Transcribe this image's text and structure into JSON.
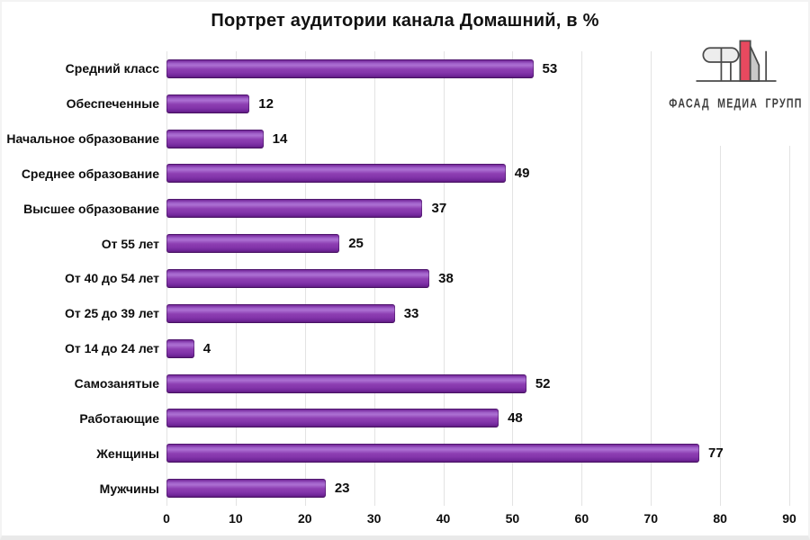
{
  "title": "Портрет аудитории канала Домашний, в %",
  "logo": {
    "text": "ФАСАД МЕДИА ГРУПП",
    "accent_red": "#e8495f",
    "gray_fill": "#c9c9c9",
    "light_fill": "#ededed",
    "outline": "#4a4a4a"
  },
  "chart_data": {
    "type": "bar",
    "orientation": "horizontal",
    "title": "Портрет аудитории канала Домашний, в %",
    "categories": [
      "Средний класс",
      "Обеспеченные",
      "Начальное образование",
      "Среднее образование",
      "Высшее образование",
      "От 55 лет",
      "От 40 до 54 лет",
      "От 25 до 39 лет",
      "От 14 до 24 лет",
      "Самозанятые",
      "Работающие",
      "Женщины",
      "Мужчины"
    ],
    "values": [
      53,
      12,
      14,
      49,
      37,
      25,
      38,
      33,
      4,
      52,
      48,
      77,
      23
    ],
    "xlim": [
      0,
      90
    ],
    "x_ticks": [
      "0",
      "10",
      "20",
      "30",
      "40",
      "50",
      "60",
      "70",
      "80",
      "90"
    ],
    "bar_color": "#8b3cb0",
    "grid": true,
    "data_labels": true,
    "legend": "none"
  }
}
